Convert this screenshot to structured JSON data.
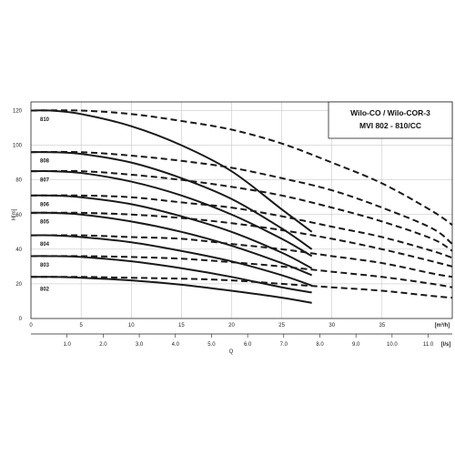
{
  "chart_data": {
    "type": "line",
    "title_lines": [
      "Wilo-CO / Wilo-COR-3",
      "MVI 802 - 810/CC"
    ],
    "ylabel": "H[m]",
    "xlabel": "Q",
    "x_unit_top": "[m³/h]",
    "x_unit_bottom": "[l/s]",
    "xlim": [
      0,
      42
    ],
    "ylim": [
      0,
      125
    ],
    "x_ticks": [
      0,
      5,
      10,
      15,
      20,
      25,
      30,
      35
    ],
    "x_ticks_ls": [
      "1.0",
      "2.0",
      "3.0",
      "4.0",
      "5.0",
      "6.0",
      "7.0",
      "8.0",
      "9.0",
      "10.0",
      "11.0"
    ],
    "x_ticks_ls_values": [
      1,
      2,
      3,
      4,
      5,
      6,
      7,
      8,
      9,
      10,
      11
    ],
    "y_ticks": [
      0,
      20,
      40,
      60,
      80,
      100,
      120
    ],
    "grid": true,
    "series": [
      {
        "name": "810",
        "label_at": [
          120,
          115
        ],
        "solid_x": [
          0,
          2,
          5,
          10,
          15,
          20,
          25,
          28
        ],
        "solid_y": [
          120,
          120,
          118,
          111,
          100,
          85,
          63,
          50
        ],
        "dashed_x": [
          0,
          5,
          10,
          15,
          20,
          25,
          30,
          35,
          40,
          42
        ],
        "dashed_y": [
          120,
          120,
          118,
          114,
          109,
          101,
          90,
          78,
          62,
          54
        ]
      },
      {
        "name": "808",
        "label_at": [
          96,
          91
        ],
        "solid_x": [
          0,
          2,
          5,
          10,
          15,
          20,
          25,
          28
        ],
        "solid_y": [
          96,
          96,
          95,
          90,
          81,
          69,
          52,
          40
        ],
        "dashed_x": [
          0,
          5,
          10,
          15,
          20,
          25,
          30,
          35,
          40,
          42
        ],
        "dashed_y": [
          96,
          96,
          94,
          91,
          87,
          81,
          74,
          64,
          52,
          43
        ]
      },
      {
        "name": "807",
        "label_at": [
          85,
          80
        ],
        "solid_x": [
          0,
          2,
          5,
          10,
          15,
          20,
          25,
          28
        ],
        "solid_y": [
          85,
          85,
          84,
          79,
          71,
          60,
          46,
          36
        ],
        "dashed_x": [
          0,
          5,
          10,
          15,
          20,
          25,
          30,
          35,
          40,
          42
        ],
        "dashed_y": [
          85,
          85,
          83,
          80,
          76,
          71,
          64,
          56,
          46,
          39
        ]
      },
      {
        "name": "806",
        "label_at": [
          71,
          66
        ],
        "solid_x": [
          0,
          2,
          5,
          10,
          15,
          20,
          25,
          28
        ],
        "solid_y": [
          71,
          71,
          70,
          66,
          59,
          50,
          38,
          29
        ],
        "dashed_x": [
          0,
          5,
          10,
          15,
          20,
          25,
          30,
          35,
          40,
          42
        ],
        "dashed_y": [
          71,
          71,
          70,
          67,
          64,
          59,
          53,
          47,
          39,
          35
        ]
      },
      {
        "name": "805",
        "label_at": [
          61,
          56
        ],
        "solid_x": [
          0,
          2,
          5,
          10,
          15,
          20,
          25,
          28
        ],
        "solid_y": [
          61,
          61,
          60,
          56,
          50,
          42,
          32,
          25
        ],
        "dashed_x": [
          0,
          5,
          10,
          15,
          20,
          25,
          30,
          35,
          40,
          42
        ],
        "dashed_y": [
          61,
          61,
          60,
          58,
          55,
          51,
          46,
          40,
          33,
          30
        ]
      },
      {
        "name": "804",
        "label_at": [
          48,
          43
        ],
        "solid_x": [
          0,
          2,
          5,
          10,
          15,
          20,
          25,
          28
        ],
        "solid_y": [
          48,
          48,
          47,
          44,
          39,
          33,
          25,
          19
        ],
        "dashed_x": [
          0,
          5,
          10,
          15,
          20,
          25,
          30,
          35,
          40,
          42
        ],
        "dashed_y": [
          48,
          48,
          47,
          46,
          43,
          40,
          36,
          32,
          26,
          24
        ]
      },
      {
        "name": "803",
        "label_at": [
          36,
          31
        ],
        "solid_x": [
          0,
          2,
          5,
          10,
          15,
          20,
          25,
          28
        ],
        "solid_y": [
          36,
          36,
          35.5,
          33,
          29,
          24,
          18,
          15
        ],
        "dashed_x": [
          0,
          5,
          10,
          15,
          20,
          25,
          30,
          35,
          40,
          42
        ],
        "dashed_y": [
          36,
          36,
          35.5,
          34.5,
          32.5,
          30,
          27,
          24,
          20,
          18
        ]
      },
      {
        "name": "802",
        "label_at": [
          24,
          17
        ],
        "solid_x": [
          0,
          2,
          5,
          10,
          15,
          20,
          25,
          28
        ],
        "solid_y": [
          24,
          24,
          23.5,
          22,
          19.5,
          16,
          12,
          9
        ],
        "dashed_x": [
          0,
          5,
          10,
          15,
          20,
          25,
          30,
          35,
          40,
          42
        ],
        "dashed_y": [
          24,
          24,
          23.5,
          23,
          22,
          20,
          18,
          16,
          13,
          12
        ]
      }
    ]
  }
}
